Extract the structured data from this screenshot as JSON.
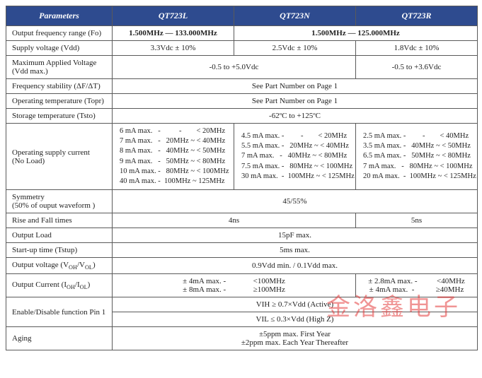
{
  "header": {
    "parameters": "Parameters",
    "col1": "QT723L",
    "col2": "QT723N",
    "col3": "QT723R"
  },
  "rows": {
    "freq_range": {
      "label": "Output frequency range (Fo)",
      "v1": "1.500MHz — 133.000MHz",
      "v23": "1.500MHz — 125.000MHz"
    },
    "supply_voltage": {
      "label": "Supply voltage (Vdd)",
      "v1": "3.3Vdc  ± 10%",
      "v2": "2.5Vdc  ± 10%",
      "v3": "1.8Vdc  ± 10%"
    },
    "max_applied": {
      "label": "Maximum Applied Voltage (Vdd max.)",
      "v12": "-0.5 to +5.0Vdc",
      "v3": "-0.5 to +3.6Vdc"
    },
    "freq_stability": {
      "label": "Frequency stability (ΔF/ΔT)",
      "v": "See Part Number on Page 1"
    },
    "op_temp": {
      "label": "Operating temperature (Topr)",
      "v": "See Part Number on Page 1"
    },
    "storage_temp": {
      "label": "Storage temperature (Tsto)",
      "v": "-62ºC to +125ºC"
    },
    "op_supply_current": {
      "label": "Operating supply current\n(No Load)",
      "v1": "6 mA max.   -          -        < 20MHz\n7 mA max.   -   20MHz ~ < 40MHz\n8 mA max.   -   40MHz ~ < 50MHz\n9 mA max.   -   50MHz ~ < 80MHz\n10 mA max. -   80MHz ~ < 100MHz\n40 mA max. -  100MHz ~ 125MHz",
      "v2": "4.5 mA max. -         -        < 20MHz\n5.5 mA max. -   20MHz ~ < 40MHz\n7 mA max.   -   40MHz ~ < 80MHz\n7.5 mA max. -   80MHz ~ < 100MHz\n30 mA max.  -  100MHz ~ < 125MHz",
      "v3": "2.5 mA max. -         -        < 40MHz\n3.5 mA max. -   40MHz ~ < 50MHz\n6.5 mA max. -   50MHz ~ < 80MHz\n7 mA max.   -   80MHz ~ < 100MHz\n20 mA max.  -  100MHz ~ < 125MHz"
    },
    "symmetry": {
      "label": "Symmetry\n(50% of ouput waveform )",
      "v": "45/55%"
    },
    "rise_fall": {
      "label": "Rise and Fall times",
      "v12": "4ns",
      "v3": "5ns"
    },
    "output_load": {
      "label": "Output Load",
      "v": "15pF max."
    },
    "startup": {
      "label": "Start-up time (Tstup)",
      "v": "5ms max."
    },
    "output_voltage": {
      "v": "0.9Vdd min. / 0.1Vdd max."
    },
    "output_current": {
      "v12": "± 4mA max. -              <100MHz\n± 8mA max. -              ≥100MHz",
      "v3": "± 2.8mA max. -          <40MHz\n± 4mA max.  -           ≥40MHz"
    },
    "enable_disable": {
      "label": "Enable/Disable function Pin 1",
      "v_top": "VIH ≥ 0.7×Vdd (Active)",
      "v_bot": "VIL ≤  0.3×Vdd (High Z)"
    },
    "aging": {
      "label": "Aging",
      "v": "±5ppm max. First Year\n±2ppm max. Each Year Thereafter"
    }
  },
  "watermark": "金洛鑫电子"
}
